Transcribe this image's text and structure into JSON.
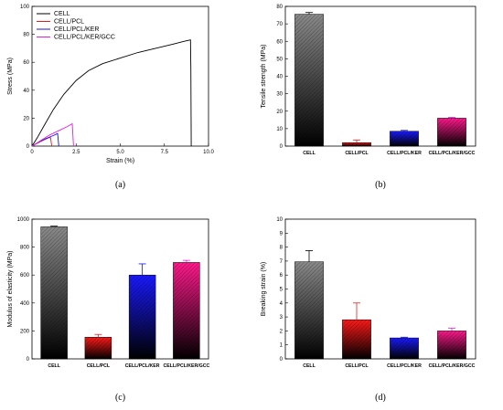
{
  "series_colors": {
    "CELL": "#000000",
    "CELL/PCL": "#e02020",
    "CELL/PCL/KER": "#1010ee",
    "CELL/PCL/KER/GCC": "#e020e0"
  },
  "chart_data": [
    {
      "panel": "(a)",
      "type": "line",
      "xlabel": "Strain (%)",
      "ylabel": "Stress (MPa)",
      "xlim": [
        0,
        10
      ],
      "ylim": [
        0,
        100
      ],
      "xticks": [
        "0",
        "2.5",
        "5.0",
        "7.5",
        "10.0"
      ],
      "yticks": [
        "0",
        "20",
        "40",
        "60",
        "80",
        "100"
      ],
      "legend_position": "top-left",
      "series": [
        {
          "name": "CELL",
          "color": "#000000",
          "x": [
            0,
            0.3,
            0.7,
            1.2,
            1.8,
            2.5,
            3.2,
            4.0,
            5.0,
            6.0,
            7.0,
            8.0,
            8.6,
            8.98,
            9.0,
            9.02
          ],
          "y": [
            0,
            6,
            15,
            26,
            37,
            47,
            54,
            59,
            63,
            67,
            70,
            73,
            75,
            76,
            55,
            0
          ]
        },
        {
          "name": "CELL/PCL",
          "color": "#e02020",
          "x": [
            0,
            0.3,
            0.6,
            0.95,
            1.05,
            1.12
          ],
          "y": [
            0,
            2,
            4,
            6,
            6,
            0
          ]
        },
        {
          "name": "CELL/PCL/KER",
          "color": "#1010ee",
          "x": [
            0,
            0.4,
            0.8,
            1.2,
            1.45,
            1.52
          ],
          "y": [
            0,
            3,
            5.5,
            7.5,
            9,
            0
          ]
        },
        {
          "name": "CELL/PCL/KER/GCC",
          "color": "#e020e0",
          "x": [
            0,
            0.5,
            1.0,
            1.5,
            2.0,
            2.28,
            2.35
          ],
          "y": [
            0,
            4,
            8,
            11,
            14,
            16,
            0
          ]
        }
      ]
    },
    {
      "panel": "(b)",
      "type": "bar",
      "ylabel": "Tensile strength (MPa)",
      "ylim": [
        0,
        80
      ],
      "yticks": [
        "0",
        "10",
        "20",
        "30",
        "40",
        "50",
        "60",
        "70",
        "80"
      ],
      "categories": [
        "CELL",
        "CELL/PCL",
        "CELL/PCL/KER",
        "CELL/PCL/KER/GCC"
      ],
      "values": [
        75.5,
        2,
        8.5,
        16
      ],
      "errors": [
        1,
        1.5,
        0.5,
        0.5
      ]
    },
    {
      "panel": "(c)",
      "type": "bar",
      "ylabel": "Modulus of elasticity (MPa)",
      "ylim": [
        0,
        1000
      ],
      "yticks": [
        "0",
        "200",
        "400",
        "600",
        "800",
        "1000"
      ],
      "categories": [
        "CELL",
        "CELL/PCL",
        "CELL/PCL/KER",
        "CELL/PCL/KER/GCC"
      ],
      "values": [
        945,
        155,
        600,
        690
      ],
      "errors": [
        5,
        20,
        80,
        15
      ]
    },
    {
      "panel": "(d)",
      "type": "bar",
      "ylabel": "Breaking strain (%)",
      "ylim": [
        0,
        10
      ],
      "yticks": [
        "0",
        "1",
        "2",
        "3",
        "4",
        "5",
        "6",
        "7",
        "8",
        "9",
        "10"
      ],
      "categories": [
        "CELL",
        "CELL/PCL",
        "CELL/PCL/KER",
        "CELL/PCL/KER/GCC"
      ],
      "values": [
        6.95,
        2.8,
        1.5,
        2.0
      ],
      "errors": [
        0.8,
        1.2,
        0.05,
        0.2
      ]
    }
  ]
}
